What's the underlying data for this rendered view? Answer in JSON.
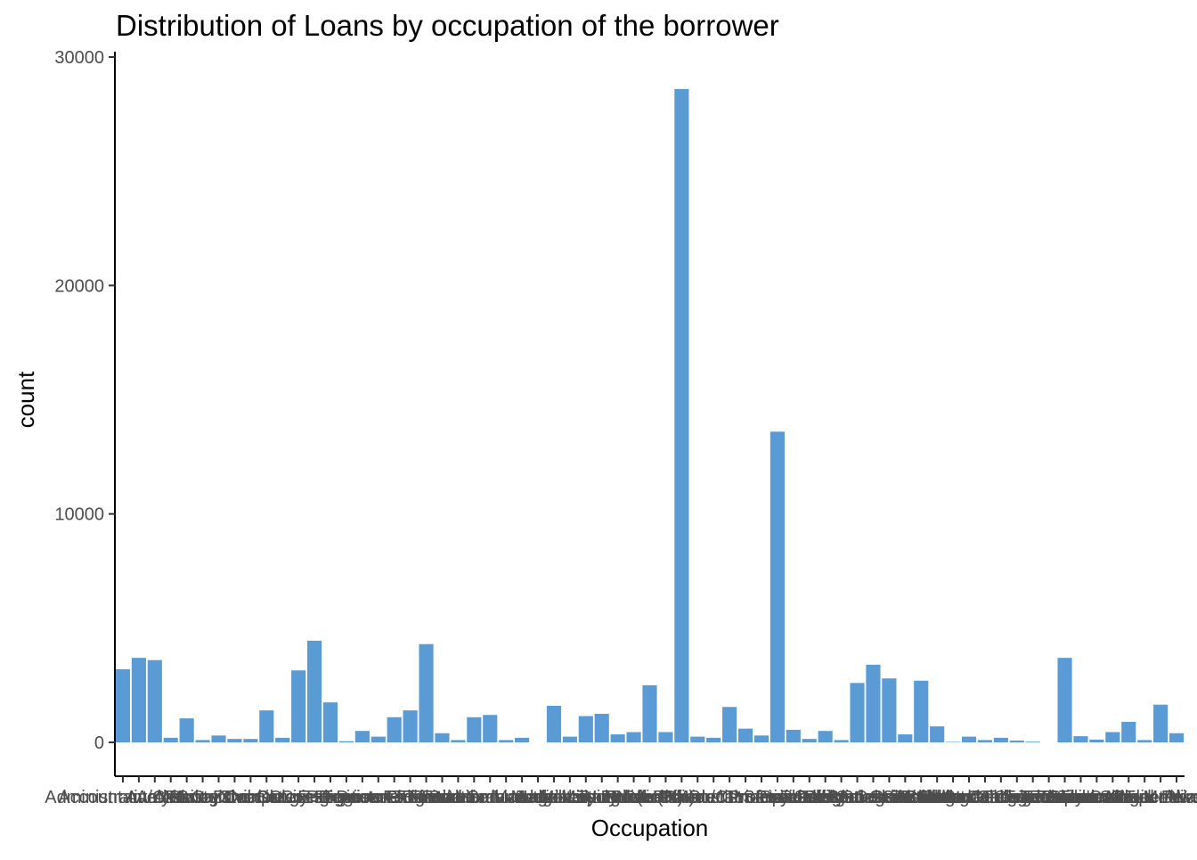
{
  "chart_data": {
    "type": "bar",
    "title": "Distribution of Loans by occupation of the borrower",
    "xlabel": "Occupation",
    "ylabel": "count",
    "ylim": [
      0,
      30000
    ],
    "yticks": [
      0,
      10000,
      20000,
      30000
    ],
    "grid": false,
    "legend": "none",
    "bar_color": "#5b9bd5",
    "categories": [
      "Accountant/CPA",
      "Administrative Assistant",
      "Analyst",
      "Architect",
      "Attorney",
      "Biologist",
      "Bus Driver",
      "Car Dealer",
      "Chemist",
      "Civil Service",
      "Clergy",
      "Clerical",
      "Computer Programmer",
      "Construction",
      "Dentist",
      "Doctor",
      "Engineer - Chemical",
      "Engineer - Electrical",
      "Engineer - Mechanical",
      "Executive",
      "Fireman",
      "Flight Attendant",
      "Food Service",
      "Food Service Management",
      "Homemaker",
      "Investor",
      "Judge",
      "Laborer",
      "Landscaping",
      "Medical Technician",
      "Military Enlisted",
      "Military Officer",
      "Nurse (LPN)",
      "Nurse (RN)",
      "Nurse's Aide",
      "Other",
      "Pharmacist",
      "Pilot - Private/Commercial",
      "Police Officer/Correction Officer",
      "Postal Service",
      "Principal",
      "Professional",
      "Professor",
      "Psychologist",
      "Realtor",
      "Religious",
      "Retail Management",
      "Sales - Commission",
      "Sales - Retail",
      "Scientist",
      "Skilled Labor",
      "Social Worker",
      "Student - College Freshman",
      "Student - College Graduate Student",
      "Student - College Junior",
      "Student - College Senior",
      "Student - College Sophomore",
      "Student - Community College",
      "Student - Technical School",
      "Teacher",
      "Teacher's Aide",
      "Tradesman - Carpenter",
      "Tradesman - Electrician",
      "Tradesman - Mechanic",
      "Tradesman - Plumber",
      "Truck Driver",
      "Waiter/Waitress"
    ],
    "values": [
      3200,
      3700,
      3600,
      200,
      1050,
      100,
      300,
      150,
      150,
      1400,
      200,
      3150,
      4450,
      1750,
      50,
      500,
      250,
      1100,
      1400,
      4300,
      400,
      100,
      1100,
      1200,
      100,
      200,
      0,
      1600,
      250,
      1150,
      1250,
      350,
      450,
      2500,
      450,
      28600,
      250,
      200,
      1550,
      600,
      300,
      13600,
      550,
      150,
      500,
      100,
      2600,
      3400,
      2800,
      350,
      2700,
      700,
      20,
      250,
      100,
      200,
      80,
      30,
      0,
      3700,
      270,
      120,
      450,
      900,
      100,
      1650,
      400
    ]
  }
}
